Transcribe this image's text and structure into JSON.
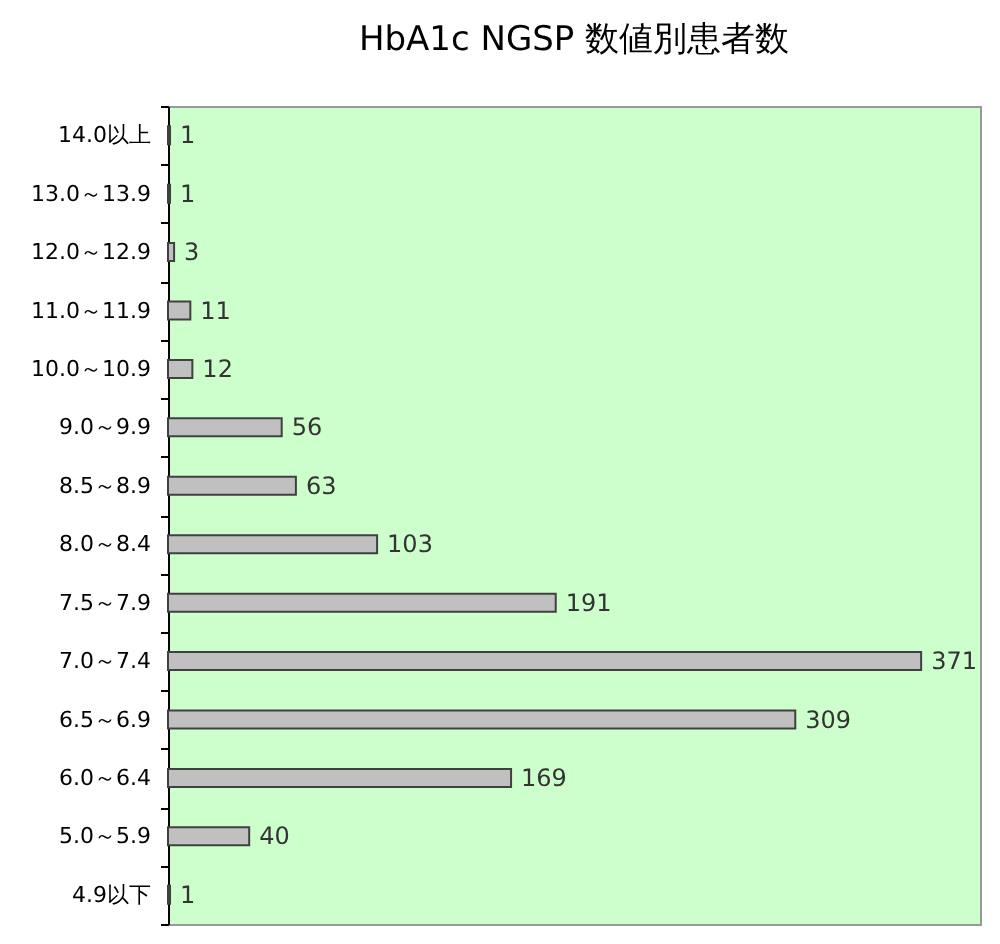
{
  "chart_data": {
    "type": "bar",
    "orientation": "horizontal",
    "title": "HbA1c NGSP 数値別患者数",
    "categories": [
      "14.0以上",
      "13.0～13.9",
      "12.0～12.9",
      "11.0～11.9",
      "10.0～10.9",
      "9.0～9.9",
      "8.5～8.9",
      "8.0～8.4",
      "7.5～7.9",
      "7.0～7.4",
      "6.5～6.9",
      "6.0～6.4",
      "5.0～5.9",
      "4.9以下"
    ],
    "values": [
      1,
      1,
      3,
      11,
      12,
      56,
      63,
      103,
      191,
      371,
      309,
      169,
      40,
      1
    ],
    "color": "#c0c0c0",
    "xlim": [
      0,
      400
    ],
    "data_labels": true,
    "tick_labels": "y"
  }
}
